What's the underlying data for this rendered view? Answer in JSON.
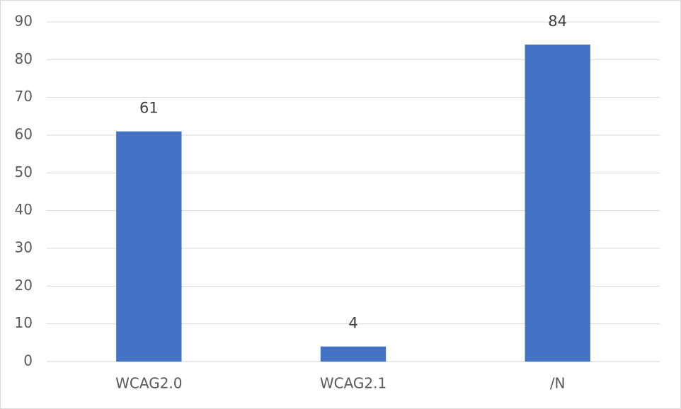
{
  "chart_data": {
    "type": "bar",
    "categories": [
      "WCAG2.0",
      "WCAG2.1",
      "/N"
    ],
    "values": [
      61,
      4,
      84
    ],
    "color": "#4472c4",
    "ylim": [
      0,
      90
    ],
    "yticks": [
      0,
      10,
      20,
      30,
      40,
      50,
      60,
      70,
      80,
      90
    ],
    "grid": true
  }
}
